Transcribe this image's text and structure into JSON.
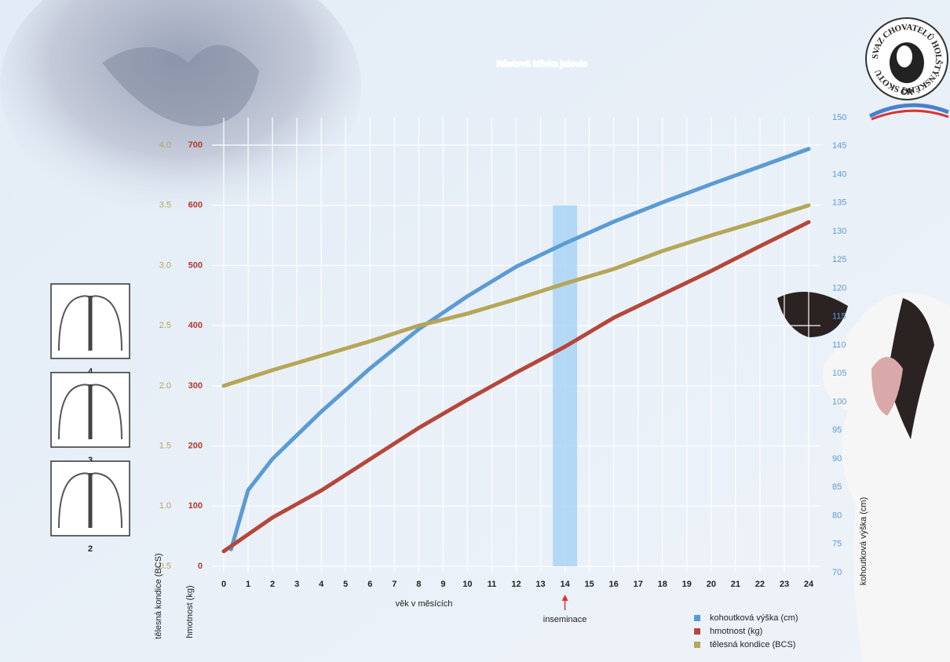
{
  "chart_data": {
    "type": "line",
    "title": "Růstová křivka jalovic",
    "xlabel": "věk v měsících",
    "xlim": [
      0,
      24
    ],
    "xticks": [
      0,
      1,
      2,
      3,
      4,
      5,
      6,
      7,
      8,
      9,
      10,
      11,
      12,
      13,
      14,
      15,
      16,
      17,
      18,
      19,
      20,
      21,
      22,
      23,
      24
    ],
    "ylabel": "hmotnost (kg)",
    "ylim": [
      0,
      700
    ],
    "yticks": [
      0,
      100,
      200,
      300,
      400,
      500,
      600,
      700
    ],
    "y3label": "tělesná kondice (BCS)",
    "y3lim": [
      0.5,
      4.0
    ],
    "y3ticks": [
      0.5,
      {
        "value": 1.0,
        "label": "1.0"
      },
      1.5,
      {
        "value": 2.0,
        "label": "2.0"
      },
      2.5,
      {
        "value": 3.0,
        "label": "3.0"
      },
      3.5,
      {
        "value": 4.0,
        "label": "4.0"
      }
    ],
    "y2label": "kohoutková výška (cm)",
    "y2lim": [
      70,
      150
    ],
    "y2ticks": [
      70,
      75,
      80,
      85,
      90,
      95,
      100,
      105,
      110,
      115,
      120,
      125,
      130,
      135,
      140,
      145,
      150
    ],
    "grid": true,
    "legend": "lower right",
    "series": [
      {
        "name": "kohoutková výška (cm)",
        "color": "#5b9bd5",
        "axis": "y2",
        "x": [
          0.3,
          1,
          2,
          4,
          6,
          8,
          10,
          12,
          14,
          16,
          18,
          20,
          22,
          24
        ],
        "values": [
          74.1,
          84.5,
          90,
          98.3,
          105.9,
          112.8,
          118.6,
          123.8,
          127.9,
          131.7,
          135.1,
          138.3,
          141.4,
          144.5
        ]
      },
      {
        "name": "hmotnost (kg)",
        "color": "#b5473a",
        "axis": "y",
        "x": [
          0,
          2,
          4,
          6,
          8,
          10,
          12,
          14,
          16,
          18,
          20,
          22,
          24
        ],
        "values": [
          25,
          81,
          126,
          178,
          230,
          277,
          322,
          365,
          413,
          452,
          491,
          532,
          572
        ]
      },
      {
        "name": "tělesná kondice (BCS)",
        "color": "#b5a657",
        "axis": "y3",
        "x": [
          0,
          2,
          4,
          6,
          8,
          10,
          12,
          14,
          16,
          18,
          20,
          22,
          24
        ],
        "values": [
          2.0,
          2.13,
          2.25,
          2.37,
          2.5,
          2.6,
          2.72,
          2.85,
          2.97,
          3.12,
          3.25,
          3.37,
          3.5
        ]
      }
    ],
    "highlight": {
      "x": [
        13.5,
        14.5
      ],
      "top": 600,
      "label": "inseminace"
    },
    "bcs_examples": [
      4,
      3,
      2
    ],
    "logo": {
      "ring": "SVAZ CHOVATELŮ HOLŠTÝNSKÉHO SKOTU",
      "country": "ČR"
    }
  }
}
